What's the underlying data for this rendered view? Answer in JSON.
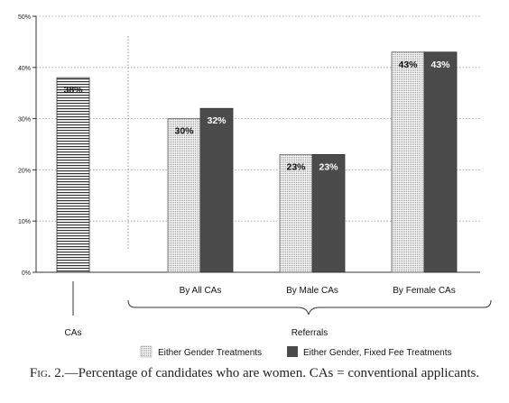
{
  "chart_data": {
    "type": "bar",
    "categories": [
      "CAs",
      "By All CAs",
      "By Male CAs",
      "By Female CAs"
    ],
    "series": [
      {
        "name": "",
        "values": [
          38,
          null,
          null,
          null
        ]
      },
      {
        "name": "Either Gender Treatments",
        "values": [
          null,
          30,
          23,
          43
        ]
      },
      {
        "name": "Either Gender, Fixed Fee Treatments",
        "values": [
          null,
          32,
          23,
          43
        ]
      }
    ],
    "data_labels": [
      [
        "38%",
        null,
        null,
        null
      ],
      [
        null,
        "30%",
        "23%",
        "43%"
      ],
      [
        null,
        "32%",
        "23%",
        "43%"
      ]
    ],
    "yticks": [
      "0%",
      "10%",
      "20%",
      "30%",
      "40%",
      "50%"
    ],
    "ylim": [
      0,
      50
    ],
    "group_labels": {
      "left": "CAs",
      "right": "Referrals"
    },
    "grid": "horizontal dotted",
    "legend_position": "bottom",
    "colors": {
      "cas": "#ffffff",
      "either": "#e6e6e6",
      "fixed": "#4b4b4b",
      "axis": "#333333"
    }
  },
  "caption": {
    "fig": "Fig. 2.",
    "text": "—Percentage of candidates who are women. CAs = conventional applicants."
  }
}
